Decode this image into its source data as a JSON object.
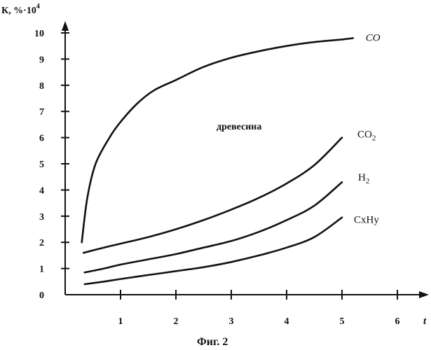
{
  "chart_data": {
    "type": "line",
    "ylabel_main": "К, %·10",
    "ylabel_exp": "4",
    "xlabel": "t",
    "annotation": "древесина",
    "caption": "Фиг. 2",
    "xlim": [
      0,
      6
    ],
    "ylim": [
      0,
      10
    ],
    "x_ticks": [
      1,
      2,
      3,
      4,
      5,
      6
    ],
    "y_ticks": [
      0,
      1,
      2,
      3,
      4,
      5,
      6,
      7,
      8,
      9,
      10
    ],
    "grid": false,
    "series": [
      {
        "name": "CO",
        "label_main": "CO",
        "label_sub": "",
        "label_style": "italic",
        "x": [
          0.3,
          0.4,
          0.55,
          0.8,
          1.0,
          1.3,
          1.6,
          2.0,
          2.5,
          3.0,
          3.5,
          4.0,
          4.5,
          5.0,
          5.2
        ],
        "y": [
          2.0,
          3.7,
          5.0,
          6.0,
          6.6,
          7.3,
          7.8,
          8.2,
          8.7,
          9.05,
          9.3,
          9.5,
          9.65,
          9.75,
          9.8
        ]
      },
      {
        "name": "CO2",
        "label_main": "CO",
        "label_sub": "2",
        "label_style": "normal",
        "x": [
          0.33,
          0.7,
          1.0,
          1.5,
          2.0,
          2.5,
          3.0,
          3.5,
          4.0,
          4.5,
          5.0
        ],
        "y": [
          1.6,
          1.8,
          1.95,
          2.2,
          2.5,
          2.85,
          3.25,
          3.7,
          4.25,
          4.95,
          6.0
        ]
      },
      {
        "name": "H2",
        "label_main": "H",
        "label_sub": "2",
        "label_style": "normal",
        "x": [
          0.35,
          0.7,
          1.0,
          1.5,
          2.0,
          2.5,
          3.0,
          3.5,
          4.0,
          4.5,
          5.0
        ],
        "y": [
          0.85,
          1.0,
          1.15,
          1.35,
          1.55,
          1.8,
          2.05,
          2.4,
          2.85,
          3.4,
          4.3
        ]
      },
      {
        "name": "CxHy",
        "label_main": "CxHy",
        "label_sub": "",
        "label_style": "normal",
        "x": [
          0.35,
          0.7,
          1.0,
          1.5,
          2.0,
          2.5,
          3.0,
          3.5,
          4.0,
          4.5,
          5.0
        ],
        "y": [
          0.4,
          0.5,
          0.6,
          0.75,
          0.9,
          1.05,
          1.25,
          1.5,
          1.8,
          2.2,
          2.95
        ]
      }
    ]
  }
}
